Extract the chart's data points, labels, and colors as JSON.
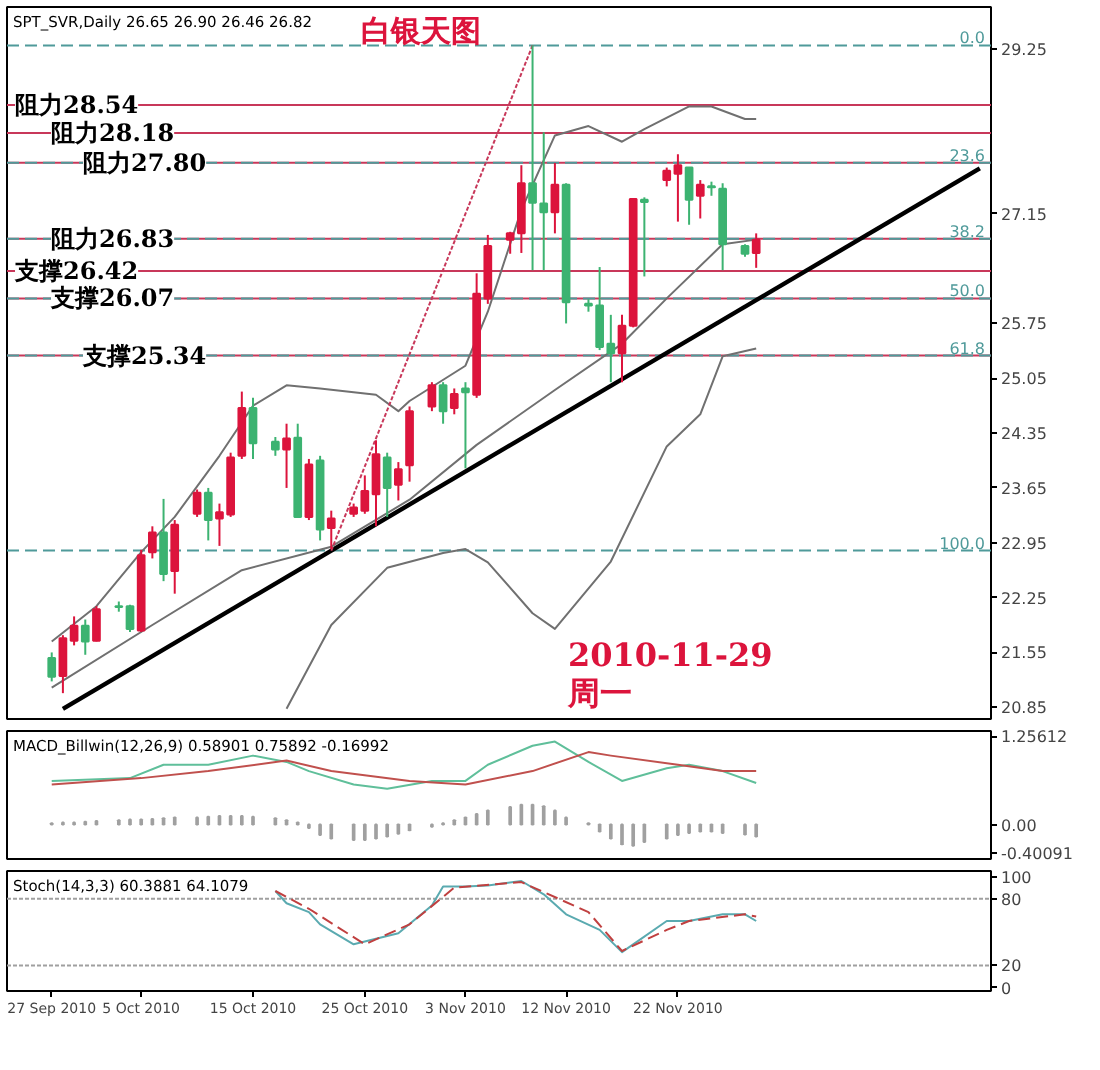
{
  "chart_data": [
    {
      "type": "candlestick",
      "title": "SPT_SVR,Daily 26.65 26.90 26.46 26.82",
      "subtitle": "白银天图",
      "annotations": [
        "2010-11-29",
        "周一",
        {
          "text": "0.0",
          "y": 29.3
        },
        {
          "text": "23.6",
          "y": 27.8
        },
        {
          "text": "38.2",
          "y": 26.83
        },
        {
          "text": "50.0",
          "y": 26.07
        },
        {
          "text": "61.8",
          "y": 25.34
        },
        {
          "text": "100.0",
          "y": 22.85
        }
      ],
      "x": [
        "2010-09-27",
        "2010-09-28",
        "2010-09-29",
        "2010-09-30",
        "2010-10-01",
        "2010-10-03",
        "2010-10-04",
        "2010-10-05",
        "2010-10-06",
        "2010-10-07",
        "2010-10-08",
        "2010-10-10",
        "2010-10-11",
        "2010-10-12",
        "2010-10-13",
        "2010-10-14",
        "2010-10-15",
        "2010-10-17",
        "2010-10-18",
        "2010-10-19",
        "2010-10-20",
        "2010-10-21",
        "2010-10-22",
        "2010-10-24",
        "2010-10-25",
        "2010-10-26",
        "2010-10-27",
        "2010-10-28",
        "2010-10-29",
        "2010-10-31",
        "2010-11-01",
        "2010-11-02",
        "2010-11-03",
        "2010-11-04",
        "2010-11-05",
        "2010-11-07",
        "2010-11-08",
        "2010-11-09",
        "2010-11-10",
        "2010-11-11",
        "2010-11-12",
        "2010-11-14",
        "2010-11-15",
        "2010-11-16",
        "2010-11-17",
        "2010-11-18",
        "2010-11-19",
        "2010-11-21",
        "2010-11-22",
        "2010-11-23",
        "2010-11-24",
        "2010-11-25",
        "2010-11-26",
        "2010-11-28",
        "2010-11-29"
      ],
      "ohlc": [
        [
          21.48,
          21.55,
          21.18,
          21.24
        ],
        [
          21.25,
          21.77,
          21.03,
          21.73
        ],
        [
          21.7,
          22.01,
          21.64,
          21.89
        ],
        [
          21.89,
          21.97,
          21.52,
          21.69
        ],
        [
          21.7,
          22.14,
          21.69,
          22.1
        ],
        [
          22.14,
          22.2,
          22.07,
          22.13
        ],
        [
          22.14,
          22.16,
          21.81,
          21.85
        ],
        [
          21.83,
          22.86,
          21.81,
          22.79
        ],
        [
          22.83,
          23.16,
          22.75,
          23.08
        ],
        [
          23.08,
          23.51,
          22.46,
          22.55
        ],
        [
          22.59,
          23.24,
          22.3,
          23.18
        ],
        [
          23.32,
          23.63,
          23.28,
          23.59
        ],
        [
          23.59,
          23.65,
          22.98,
          23.24
        ],
        [
          23.26,
          23.45,
          22.91,
          23.34
        ],
        [
          23.31,
          24.1,
          23.28,
          24.04
        ],
        [
          24.06,
          24.88,
          24.02,
          24.67
        ],
        [
          24.67,
          24.8,
          24.02,
          24.22
        ],
        [
          24.24,
          24.3,
          24.06,
          24.14
        ],
        [
          24.14,
          24.47,
          23.65,
          24.28
        ],
        [
          24.29,
          24.47,
          23.28,
          23.28
        ],
        [
          23.28,
          24.02,
          23.24,
          23.95
        ],
        [
          24.0,
          24.06,
          22.98,
          23.12
        ],
        [
          23.14,
          23.36,
          22.87,
          23.26
        ],
        [
          23.32,
          23.45,
          23.28,
          23.4
        ],
        [
          23.36,
          23.81,
          23.32,
          23.61
        ],
        [
          23.57,
          24.26,
          23.16,
          24.08
        ],
        [
          24.04,
          24.1,
          23.28,
          23.65
        ],
        [
          23.69,
          23.98,
          23.49,
          23.89
        ],
        [
          23.94,
          24.69,
          23.73,
          24.63
        ],
        [
          24.69,
          25.0,
          24.63,
          24.96
        ],
        [
          24.96,
          25.0,
          24.47,
          24.63
        ],
        [
          24.67,
          24.92,
          24.59,
          24.85
        ],
        [
          24.92,
          25.0,
          23.9,
          24.87
        ],
        [
          24.84,
          26.39,
          24.8,
          26.13
        ],
        [
          26.07,
          26.88,
          26.0,
          26.74
        ],
        [
          26.82,
          26.92,
          26.64,
          26.9
        ],
        [
          26.9,
          27.77,
          26.65,
          27.54
        ],
        [
          27.54,
          29.3,
          26.43,
          27.29
        ],
        [
          27.28,
          28.19,
          26.43,
          27.17
        ],
        [
          27.17,
          27.8,
          26.9,
          27.52
        ],
        [
          27.52,
          27.54,
          25.75,
          26.02
        ],
        [
          26.0,
          26.06,
          25.9,
          25.98
        ],
        [
          25.98,
          26.47,
          25.41,
          25.45
        ],
        [
          25.49,
          25.86,
          25.0,
          25.37
        ],
        [
          25.37,
          25.86,
          25.0,
          25.72
        ],
        [
          25.72,
          27.34,
          25.7,
          27.34
        ],
        [
          27.33,
          27.36,
          26.35,
          27.3
        ],
        [
          27.58,
          27.74,
          27.5,
          27.7
        ],
        [
          27.66,
          27.91,
          27.05,
          27.77
        ],
        [
          27.74,
          27.74,
          27.01,
          27.33
        ],
        [
          27.38,
          27.58,
          27.09,
          27.52
        ],
        [
          27.5,
          27.56,
          27.38,
          27.49
        ],
        [
          27.47,
          27.54,
          26.43,
          26.76
        ],
        [
          26.74,
          26.76,
          26.6,
          26.64
        ],
        [
          26.65,
          26.9,
          26.46,
          26.82
        ]
      ],
      "colors": [
        "#3cb371",
        "#dc143c",
        "#dc143c",
        "#3cb371",
        "#dc143c",
        "#3cb371",
        "#3cb371",
        "#dc143c",
        "#dc143c",
        "#3cb371",
        "#dc143c",
        "#dc143c",
        "#3cb371",
        "#dc143c",
        "#dc143c",
        "#dc143c",
        "#3cb371",
        "#3cb371",
        "#dc143c",
        "#3cb371",
        "#dc143c",
        "#3cb371",
        "#dc143c",
        "#dc143c",
        "#dc143c",
        "#dc143c",
        "#3cb371",
        "#dc143c",
        "#dc143c",
        "#dc143c",
        "#3cb371",
        "#dc143c",
        "#3cb371",
        "#dc143c",
        "#dc143c",
        "#dc143c",
        "#dc143c",
        "#3cb371",
        "#3cb371",
        "#dc143c",
        "#3cb371",
        "#3cb371",
        "#3cb371",
        "#3cb371",
        "#dc143c",
        "#dc143c",
        "#3cb371",
        "#dc143c",
        "#dc143c",
        "#3cb371",
        "#dc143c",
        "#3cb371",
        "#3cb371",
        "#3cb371",
        "#dc143c"
      ],
      "series": [
        {
          "type": "line",
          "color": "#707070",
          "x": [
            "2010-09-27",
            "2010-10-01",
            "2010-10-05",
            "2010-10-08",
            "2010-10-12",
            "2010-10-15",
            "2010-10-18",
            "2010-10-21",
            "2010-10-26",
            "2010-10-28",
            "2010-10-29",
            "2010-11-03",
            "2010-11-05",
            "2010-11-08",
            "2010-11-11",
            "2010-11-14",
            "2010-11-17",
            "2010-11-19",
            "2010-11-23",
            "2010-11-25",
            "2010-11-28",
            "2010-11-29"
          ],
          "values": [
            21.69,
            22.14,
            22.83,
            23.28,
            24.06,
            24.7,
            24.96,
            24.92,
            24.84,
            24.63,
            24.76,
            25.21,
            25.9,
            27.2,
            28.15,
            28.27,
            28.07,
            28.23,
            28.52,
            28.52,
            28.36,
            28.36
          ]
        },
        {
          "type": "line",
          "color": "#707070",
          "x": [
            "2010-09-27",
            "2010-10-06",
            "2010-10-14",
            "2010-10-22",
            "2010-10-29",
            "2010-11-04",
            "2010-11-11",
            "2010-11-17",
            "2010-11-21",
            "2010-11-26",
            "2010-11-29"
          ],
          "values": [
            21.1,
            21.9,
            22.6,
            22.9,
            23.5,
            24.2,
            24.9,
            25.49,
            26.07,
            26.76,
            26.82
          ]
        },
        {
          "type": "line",
          "color": "#707070",
          "x": [
            "2010-10-18",
            "2010-10-22",
            "2010-10-27",
            "2010-11-01",
            "2010-11-03",
            "2010-11-05",
            "2010-11-09",
            "2010-11-11",
            "2010-11-16",
            "2010-11-21",
            "2010-11-24",
            "2010-11-26",
            "2010-11-29"
          ],
          "values": [
            20.83,
            21.9,
            22.63,
            22.82,
            22.87,
            22.7,
            22.05,
            21.85,
            22.71,
            24.18,
            24.59,
            25.33,
            25.43
          ]
        },
        {
          "type": "line",
          "color": "#000000",
          "x": [
            "2010-09-28",
            "2010-12-19"
          ],
          "values": [
            20.83,
            27.73
          ]
        },
        {
          "type": "line",
          "color": "#c8385a",
          "line_style": "dotted",
          "x": [
            "2010-10-22",
            "2010-11-09"
          ],
          "values": [
            22.85,
            29.3
          ]
        }
      ],
      "ref_lines": [
        {
          "axis": "y",
          "value": 28.54,
          "label": "阻力28.54",
          "color": "#c8385a",
          "line_style": "solid"
        },
        {
          "axis": "y",
          "value": 28.18,
          "label": "阻力28.18",
          "color": "#c8385a",
          "line_style": "solid"
        },
        {
          "axis": "y",
          "value": 27.8,
          "label": "阻力27.80",
          "color": "#c8385a",
          "line_style": "solid"
        },
        {
          "axis": "y",
          "value": 26.83,
          "label": "阻力26.83",
          "color": "#c8385a",
          "line_style": "solid"
        },
        {
          "axis": "y",
          "value": 26.42,
          "label": "支撑26.42",
          "color": "#c8385a",
          "line_style": "solid"
        },
        {
          "axis": "y",
          "value": 26.07,
          "label": "支撑26.07",
          "color": "#c8385a",
          "line_style": "solid"
        },
        {
          "axis": "y",
          "value": 25.34,
          "label": "支撑25.34",
          "color": "#c8385a",
          "line_style": "solid"
        },
        {
          "axis": "y",
          "value": 29.3,
          "color": "#4f9a9a",
          "line_style": "dashed"
        },
        {
          "axis": "y",
          "value": 27.8,
          "color": "#4f9a9a",
          "line_style": "dashed"
        },
        {
          "axis": "y",
          "value": 26.83,
          "color": "#4f9a9a",
          "line_style": "dashed"
        },
        {
          "axis": "y",
          "value": 26.07,
          "color": "#4f9a9a",
          "line_style": "dashed"
        },
        {
          "axis": "y",
          "value": 25.34,
          "color": "#4f9a9a",
          "line_style": "dashed"
        },
        {
          "axis": "y",
          "value": 22.85,
          "color": "#4f9a9a",
          "line_style": "dashed"
        }
      ],
      "xlim": [
        "2010-09-23",
        "2010-12-20"
      ],
      "ylim": [
        20.7,
        29.79
      ],
      "yticks": [
        29.25,
        27.15,
        25.75,
        25.05,
        24.35,
        23.65,
        22.95,
        22.25,
        21.55,
        20.85
      ],
      "tick_labels": "y"
    },
    {
      "type": "line",
      "title": "MACD_Billwin(12,26,9) 0.58901 0.75892 -0.16992",
      "series": [
        {
          "type": "bar",
          "color": "#a0a0a0",
          "values": [
            0.02,
            0.03,
            0.03,
            0.04,
            0.05,
            0.06,
            0.07,
            0.07,
            0.08,
            0.09,
            0.1,
            0.1,
            0.11,
            0.12,
            0.12,
            0.12,
            0.11,
            0.09,
            0.06,
            0.03,
            -0.05,
            -0.15,
            -0.2,
            -0.22,
            -0.22,
            -0.2,
            -0.17,
            -0.13,
            -0.08,
            -0.03,
            0.02,
            0.06,
            0.1,
            0.15,
            0.2,
            0.25,
            0.28,
            0.28,
            0.26,
            0.2,
            0.1,
            0.02,
            -0.1,
            -0.2,
            -0.28,
            -0.3,
            -0.25,
            -0.2,
            -0.15,
            -0.12,
            -0.1,
            -0.1,
            -0.12,
            -0.14,
            -0.17
          ],
          "x": [
            "2010-09-27",
            "2010-09-28",
            "2010-09-29",
            "2010-09-30",
            "2010-10-01",
            "2010-10-03",
            "2010-10-04",
            "2010-10-05",
            "2010-10-06",
            "2010-10-07",
            "2010-10-08",
            "2010-10-10",
            "2010-10-11",
            "2010-10-12",
            "2010-10-13",
            "2010-10-14",
            "2010-10-15",
            "2010-10-17",
            "2010-10-18",
            "2010-10-19",
            "2010-10-20",
            "2010-10-21",
            "2010-10-22",
            "2010-10-24",
            "2010-10-25",
            "2010-10-26",
            "2010-10-27",
            "2010-10-28",
            "2010-10-29",
            "2010-10-31",
            "2010-11-01",
            "2010-11-02",
            "2010-11-03",
            "2010-11-04",
            "2010-11-05",
            "2010-11-07",
            "2010-11-08",
            "2010-11-09",
            "2010-11-10",
            "2010-11-11",
            "2010-11-12",
            "2010-11-14",
            "2010-11-15",
            "2010-11-16",
            "2010-11-17",
            "2010-11-18",
            "2010-11-19",
            "2010-11-21",
            "2010-11-22",
            "2010-11-23",
            "2010-11-24",
            "2010-11-25",
            "2010-11-26",
            "2010-11-28",
            "2010-11-29"
          ]
        },
        {
          "type": "line",
          "color": "#5fbf9a",
          "x": [
            "2010-09-27",
            "2010-10-04",
            "2010-10-07",
            "2010-10-11",
            "2010-10-15",
            "2010-10-18",
            "2010-10-20",
            "2010-10-24",
            "2010-10-27",
            "2010-10-31",
            "2010-11-03",
            "2010-11-05",
            "2010-11-09",
            "2010-11-11",
            "2010-11-14",
            "2010-11-17",
            "2010-11-21",
            "2010-11-23",
            "2010-11-26",
            "2010-11-29"
          ],
          "values": [
            0.62,
            0.66,
            0.85,
            0.85,
            0.98,
            0.89,
            0.76,
            0.57,
            0.51,
            0.62,
            0.62,
            0.85,
            1.12,
            1.18,
            0.89,
            0.62,
            0.8,
            0.85,
            0.76,
            0.59
          ]
        },
        {
          "type": "line",
          "color": "#c0504d",
          "x": [
            "2010-09-27",
            "2010-10-05",
            "2010-10-11",
            "2010-10-18",
            "2010-10-22",
            "2010-10-29",
            "2010-11-03",
            "2010-11-09",
            "2010-11-14",
            "2010-11-16",
            "2010-11-22",
            "2010-11-26",
            "2010-11-29"
          ],
          "values": [
            0.57,
            0.66,
            0.76,
            0.91,
            0.76,
            0.62,
            0.57,
            0.76,
            1.03,
            0.98,
            0.85,
            0.76,
            0.76
          ]
        }
      ],
      "xlim": [
        "2010-09-23",
        "2010-12-20"
      ],
      "ylim": [
        -0.49,
        1.33
      ],
      "yticks": [
        1.25612,
        {
          "value": 0,
          "label": "0.00"
        },
        -0.40091
      ],
      "tick_labels": "y"
    },
    {
      "type": "line",
      "title": "Stoch(14,3,3) 60.3881 64.1079",
      "series": [
        {
          "color": "#5aaab0",
          "x": [
            "2010-10-17",
            "2010-10-18",
            "2010-10-20",
            "2010-10-21",
            "2010-10-24",
            "2010-10-26",
            "2010-10-28",
            "2010-10-31",
            "2010-11-01",
            "2010-11-03",
            "2010-11-05",
            "2010-11-08",
            "2010-11-10",
            "2010-11-12",
            "2010-11-15",
            "2010-11-17",
            "2010-11-18",
            "2010-11-21",
            "2010-11-23",
            "2010-11-26",
            "2010-11-28",
            "2010-11-29"
          ],
          "values": [
            87,
            76,
            68,
            57,
            39,
            44,
            49,
            74,
            91,
            91,
            92,
            96,
            84,
            66,
            52,
            32,
            39,
            60,
            60,
            66,
            66,
            60
          ]
        },
        {
          "color": "#c04040",
          "line_style": "dashed",
          "x": [
            "2010-10-17",
            "2010-10-20",
            "2010-10-25",
            "2010-10-29",
            "2010-11-02",
            "2010-11-08",
            "2010-11-14",
            "2010-11-17",
            "2010-11-21",
            "2010-11-23",
            "2010-11-28",
            "2010-11-29"
          ],
          "values": [
            87,
            71,
            39,
            57,
            90,
            95,
            68,
            33,
            52,
            60,
            66,
            64
          ]
        }
      ],
      "ref_lines": [
        {
          "axis": "y",
          "value": 80,
          "color": "#a0a0a0",
          "line_style": "dotted"
        },
        {
          "axis": "y",
          "value": 20,
          "color": "#a0a0a0",
          "line_style": "dotted"
        }
      ],
      "xlim": [
        "2010-09-23",
        "2010-12-20"
      ],
      "ylim": [
        -3,
        105
      ],
      "yticks": [
        100,
        80,
        20,
        0
      ],
      "xticks": [
        {
          "value": "2010-09-27",
          "label": "27 Sep 2010"
        },
        {
          "value": "2010-10-05",
          "label": "5 Oct 2010"
        },
        {
          "value": "2010-10-15",
          "label": "15 Oct 2010"
        },
        {
          "value": "2010-10-25",
          "label": "25 Oct 2010"
        },
        {
          "value": "2010-11-03",
          "label": "3 Nov 2010"
        },
        {
          "value": "2010-11-12",
          "label": "12 Nov 2010"
        },
        {
          "value": "2010-11-22",
          "label": "22 Nov 2010"
        }
      ]
    }
  ]
}
